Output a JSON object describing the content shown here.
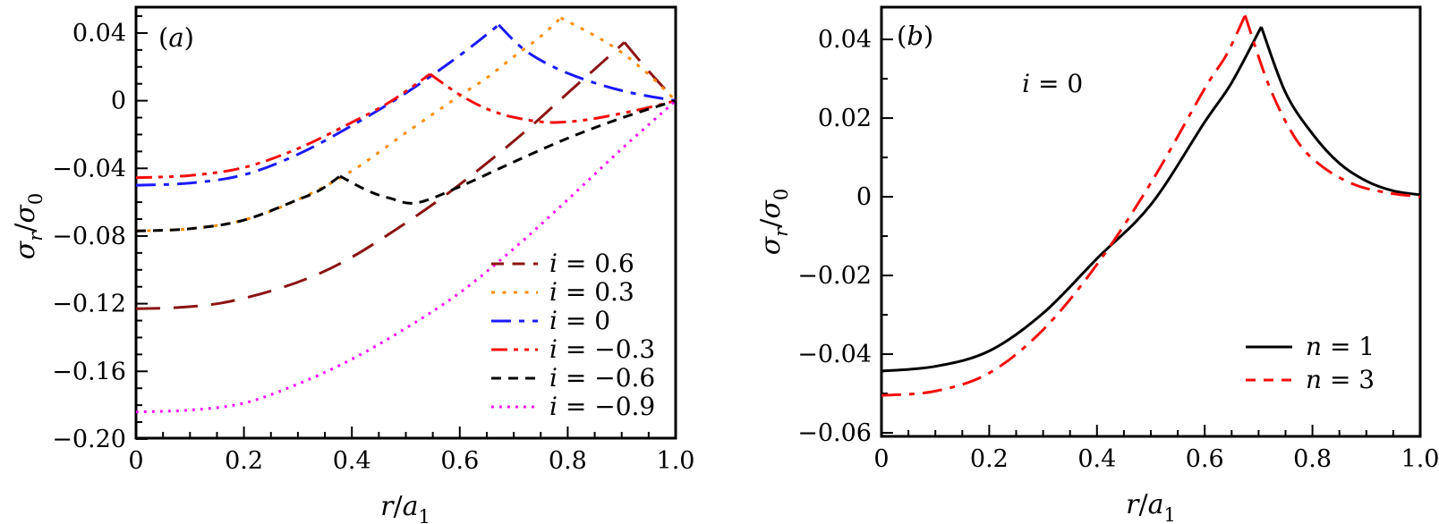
{
  "chart_data": [
    {
      "type": "line",
      "panel_label": "(a)",
      "xlabel": "r/a_1",
      "ylabel": "σ_r/σ_0",
      "xlim": [
        0,
        1.0
      ],
      "ylim": [
        -0.1995,
        0.0553
      ],
      "grid": false,
      "legend_position": "lower-right",
      "x_ticks": {
        "values": [
          0,
          0.2,
          0.4,
          0.6,
          0.8,
          1.0
        ],
        "labels": [
          "0",
          "0.2",
          "0.4",
          "0.6",
          "0.8",
          "1.0"
        ],
        "minor_step": 0.05
      },
      "y_ticks": {
        "values": [
          0.04,
          0,
          -0.04,
          -0.08,
          -0.12,
          -0.16,
          -0.2
        ],
        "labels": [
          "0.04",
          "0",
          "−0.04",
          "−0.08",
          "−0.12",
          "−0.16",
          "−0.20"
        ],
        "minor_step": 0.01
      },
      "series": [
        {
          "name": "i = 0.6",
          "color": "#8b1414",
          "style": "long-dash",
          "legend_dash": "14 9.5",
          "segments": [
            [
              [
                0,
                -0.123
              ],
              [
                0.08,
                -0.1222
              ],
              [
                0.16,
                -0.1195
              ],
              [
                0.25,
                -0.1125
              ],
              [
                0.33,
                -0.1035
              ],
              [
                0.4,
                -0.0925
              ],
              [
                0.48,
                -0.0765
              ],
              [
                0.56,
                -0.059
              ],
              [
                0.64,
                -0.0395
              ],
              [
                0.72,
                -0.0185
              ],
              [
                0.8,
                0.0045
              ],
              [
                0.86,
                0.0215
              ],
              [
                0.905,
                0.0345
              ]
            ],
            [
              [
                0.905,
                0.0345
              ],
              [
                0.95,
                0.0175
              ],
              [
                1,
                0
              ]
            ]
          ]
        },
        {
          "name": "i = 0.3",
          "color": "#ff8c00",
          "style": "dot",
          "segments": [
            [
              [
                0,
                -0.077
              ],
              [
                0.1,
                -0.0757
              ],
              [
                0.2,
                -0.0705
              ],
              [
                0.3,
                -0.0585
              ],
              [
                0.4,
                -0.0415
              ],
              [
                0.5,
                -0.019
              ],
              [
                0.6,
                0.003
              ],
              [
                0.65,
                0.0135
              ],
              [
                0.7,
                0.026
              ],
              [
                0.75,
                0.038
              ],
              [
                0.787,
                0.049
              ]
            ],
            [
              [
                0.787,
                0.049
              ],
              [
                0.85,
                0.0385
              ],
              [
                0.9,
                0.0285
              ],
              [
                0.95,
                0.0155
              ],
              [
                1,
                0
              ]
            ]
          ]
        },
        {
          "name": "i = 0",
          "color": "#1a1aff",
          "style": "dash-dot",
          "segments": [
            [
              [
                0,
                -0.05
              ],
              [
                0.1,
                -0.0487
              ],
              [
                0.2,
                -0.0438
              ],
              [
                0.3,
                -0.0317
              ],
              [
                0.4,
                -0.0147
              ],
              [
                0.5,
                0.0045
              ],
              [
                0.6,
                0.0268
              ],
              [
                0.672,
                0.0448
              ]
            ],
            [
              [
                0.672,
                0.0448
              ],
              [
                0.72,
                0.03
              ],
              [
                0.78,
                0.019
              ],
              [
                0.85,
                0.0105
              ],
              [
                0.92,
                0.0045
              ],
              [
                1,
                0
              ]
            ]
          ]
        },
        {
          "name": "i = −0.3",
          "color": "#f50d0d",
          "style": "dash-dot-dot",
          "segments": [
            [
              [
                0,
                -0.0455
              ],
              [
                0.1,
                -0.0442
              ],
              [
                0.2,
                -0.0395
              ],
              [
                0.3,
                -0.0283
              ],
              [
                0.4,
                -0.0128
              ],
              [
                0.47,
                -0.0008
              ],
              [
                0.545,
                0.0157
              ]
            ],
            [
              [
                0.545,
                0.0157
              ],
              [
                0.6,
                0.0035
              ],
              [
                0.65,
                -0.0048
              ],
              [
                0.7,
                -0.0098
              ],
              [
                0.765,
                -0.0128
              ],
              [
                0.83,
                -0.0115
              ],
              [
                0.9,
                -0.0075
              ],
              [
                0.95,
                -0.004
              ],
              [
                1,
                0
              ]
            ]
          ]
        },
        {
          "name": "i = −0.6",
          "color": "#000000",
          "style": "dash",
          "segments": [
            [
              [
                0,
                -0.077
              ],
              [
                0.1,
                -0.0757
              ],
              [
                0.2,
                -0.0706
              ],
              [
                0.3,
                -0.0585
              ],
              [
                0.34,
                -0.053
              ],
              [
                0.378,
                -0.0446
              ]
            ],
            [
              [
                0.378,
                -0.0446
              ],
              [
                0.43,
                -0.0533
              ],
              [
                0.47,
                -0.0576
              ],
              [
                0.52,
                -0.0604
              ],
              [
                0.6,
                -0.0508
              ],
              [
                0.7,
                -0.0362
              ],
              [
                0.8,
                -0.0222
              ],
              [
                0.9,
                -0.0102
              ],
              [
                1,
                0
              ]
            ]
          ]
        },
        {
          "name": "i = −0.9",
          "color": "#ff00ff",
          "style": "fine-dot",
          "segments": [
            [
              [
                0,
                -0.184
              ],
              [
                0.1,
                -0.1829
              ],
              [
                0.2,
                -0.1788
              ],
              [
                0.3,
                -0.1675
              ],
              [
                0.4,
                -0.1528
              ],
              [
                0.5,
                -0.1345
              ],
              [
                0.6,
                -0.1135
              ],
              [
                0.7,
                -0.0875
              ],
              [
                0.8,
                -0.0585
              ],
              [
                0.9,
                -0.0285
              ],
              [
                1,
                0
              ]
            ]
          ]
        }
      ]
    },
    {
      "type": "line",
      "panel_label": "(b)",
      "xlabel": "r/a_1",
      "ylabel": "σ_r/σ_0",
      "xlim": [
        0,
        1.0
      ],
      "ylim": [
        -0.0609,
        0.0482
      ],
      "grid": false,
      "legend_position": "lower-right",
      "x_ticks": {
        "values": [
          0,
          0.2,
          0.4,
          0.6,
          0.8,
          1.0
        ],
        "labels": [
          "0",
          "0.2",
          "0.4",
          "0.6",
          "0.8",
          "1.0"
        ],
        "minor_step": 0.05
      },
      "y_ticks": {
        "values": [
          0.04,
          0.02,
          0,
          -0.02,
          -0.04,
          -0.06
        ],
        "labels": [
          "0.04",
          "0.02",
          "0",
          "−0.02",
          "−0.04",
          "−0.06"
        ],
        "minor_step": 0.01
      },
      "annotations": [
        {
          "text": "i = 0",
          "x": 0.261,
          "y": 0.0289
        }
      ],
      "series": [
        {
          "name": "n = 1",
          "color": "#000000",
          "style": "solid",
          "segments": [
            [
              [
                0,
                -0.0443
              ],
              [
                0.1,
                -0.0431
              ],
              [
                0.2,
                -0.0392
              ],
              [
                0.3,
                -0.0296
              ],
              [
                0.4,
                -0.0157
              ],
              [
                0.5,
                -0.002
              ],
              [
                0.6,
                0.019
              ],
              [
                0.65,
                0.029
              ],
              [
                0.705,
                0.0432
              ]
            ],
            [
              [
                0.705,
                0.0432
              ],
              [
                0.75,
                0.0265
              ],
              [
                0.8,
                0.016
              ],
              [
                0.85,
                0.0085
              ],
              [
                0.9,
                0.004
              ],
              [
                0.95,
                0.0015
              ],
              [
                1,
                0.0005
              ]
            ]
          ]
        },
        {
          "name": "n = 3",
          "color": "#f50d0d",
          "style": "dash-dot",
          "legend_dash": "11 9",
          "segments": [
            [
              [
                0,
                -0.0505
              ],
              [
                0.1,
                -0.0494
              ],
              [
                0.2,
                -0.0448
              ],
              [
                0.3,
                -0.0338
              ],
              [
                0.4,
                -0.0172
              ],
              [
                0.5,
                0.0035
              ],
              [
                0.6,
                0.0275
              ],
              [
                0.64,
                0.036
              ],
              [
                0.675,
                0.0461
              ]
            ],
            [
              [
                0.675,
                0.0461
              ],
              [
                0.72,
                0.028
              ],
              [
                0.77,
                0.0145
              ],
              [
                0.82,
                0.0075
              ],
              [
                0.88,
                0.003
              ],
              [
                0.94,
                0.001
              ],
              [
                1,
                0
              ]
            ]
          ]
        }
      ]
    }
  ]
}
